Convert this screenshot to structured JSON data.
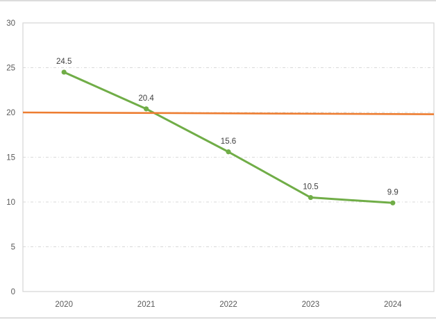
{
  "page": {
    "background_color": "#FFFFFF",
    "top_border_color": "#DCDCDC",
    "bottom_border_color": "#DDDDDD"
  },
  "chart_data": {
    "type": "line",
    "title": "",
    "xlabel": "",
    "ylabel": "",
    "categories": [
      "2020",
      "2021",
      "2022",
      "2023",
      "2024"
    ],
    "series": [
      {
        "name": "main-series",
        "color": "#70AD47",
        "marker": "circle",
        "values": [
          24.5,
          20.4,
          15.6,
          10.5,
          9.9
        ],
        "data_labels": [
          "24.5",
          "20.4",
          "15.6",
          "10.5",
          "9.9"
        ]
      },
      {
        "name": "reference-line",
        "color": "#ED7D31",
        "marker": "none",
        "edge_to_edge": true,
        "start_value": 20.0,
        "end_value": 19.8,
        "data_labels": []
      }
    ],
    "ylim": [
      0,
      30
    ],
    "ytick_step": 5,
    "ytick_labels": [
      "0",
      "5",
      "10",
      "15",
      "20",
      "25",
      "30"
    ],
    "grid": "horizontal",
    "gridline_style": "dash-dot",
    "gridline_color": "#D9D9D9",
    "plot_border_color": "#D6D6D6",
    "axis_label_color": "#595959",
    "data_label_color": "#404040",
    "legend": "none"
  }
}
